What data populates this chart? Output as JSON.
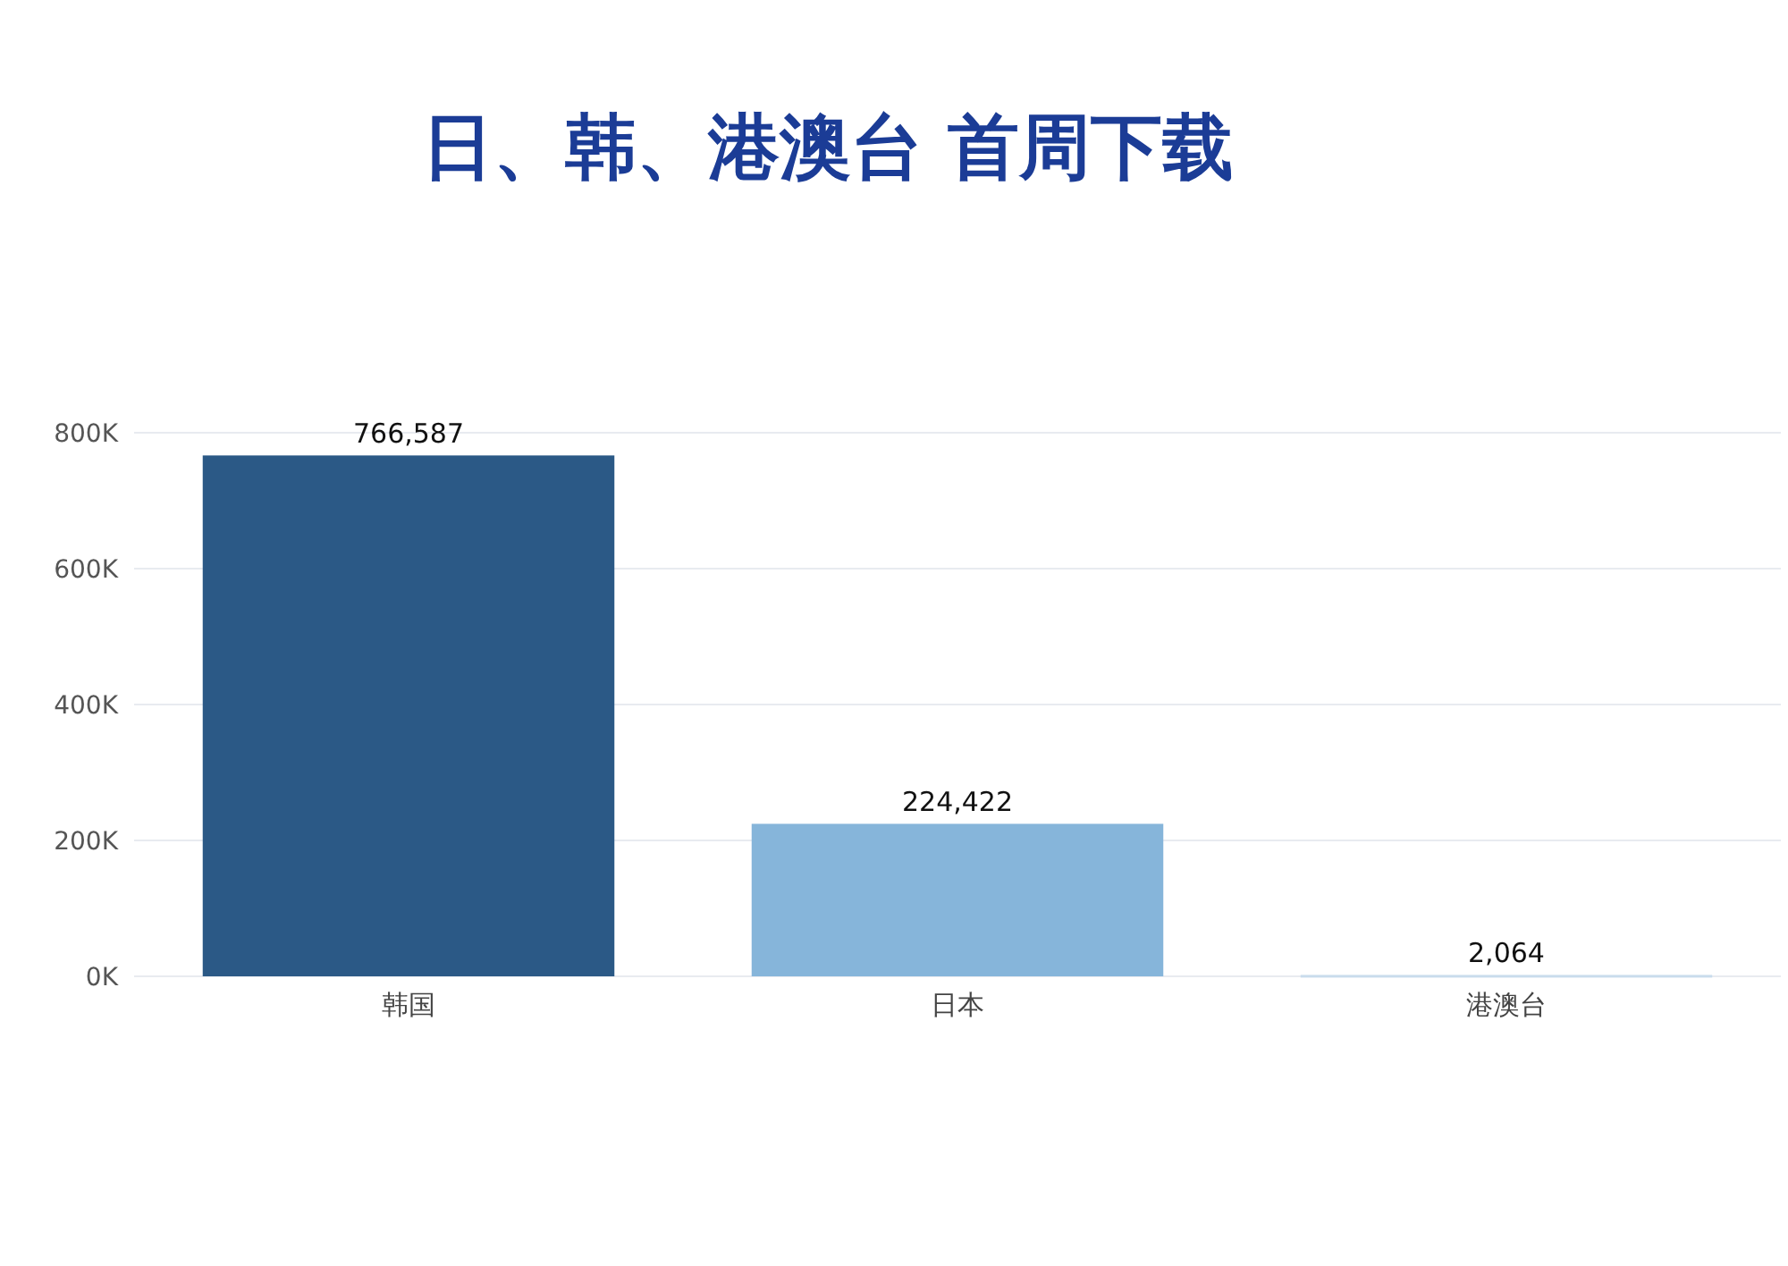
{
  "chart_data": {
    "type": "bar",
    "title": "日、韩、港澳台 首周下载",
    "categories": [
      "韩国",
      "日本",
      "港澳台"
    ],
    "values": [
      766587,
      224422,
      2064
    ],
    "colors": [
      "#2b5986",
      "#86b5da",
      "#c9dcec"
    ],
    "ylim": [
      0,
      800000
    ],
    "yticks": [
      {
        "value": 0,
        "label": "0K"
      },
      {
        "value": 200000,
        "label": "200K"
      },
      {
        "value": 400000,
        "label": "400K"
      },
      {
        "value": 600000,
        "label": "600K"
      },
      {
        "value": 800000,
        "label": "800K"
      }
    ],
    "value_labels": [
      "766,587",
      "224,422",
      "2,064"
    ],
    "grid": "y"
  }
}
